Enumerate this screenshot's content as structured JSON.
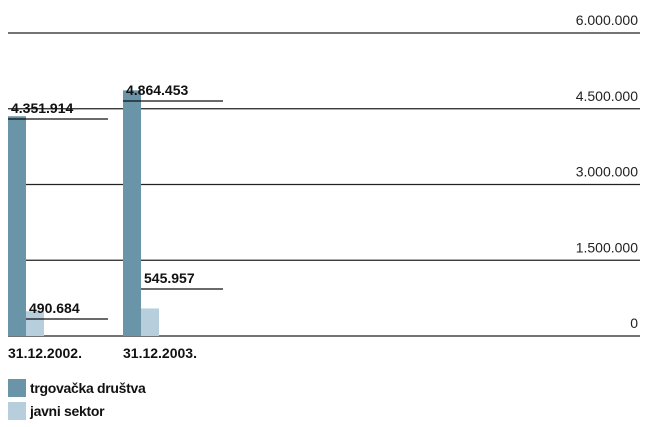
{
  "chart_data": {
    "type": "bar",
    "categories": [
      "31.12.2002.",
      "31.12.2003."
    ],
    "series": [
      {
        "name": "trgovačka društva",
        "values": [
          4351914,
          4864453
        ],
        "labels": [
          "4.351.914",
          "4.864.453"
        ],
        "color": "#6a94a8"
      },
      {
        "name": "javni sektor",
        "values": [
          490684,
          545957
        ],
        "labels": [
          "490.684",
          "545.957"
        ],
        "color": "#b7cfdd"
      }
    ],
    "y_ticks": [
      0,
      1500000,
      3000000,
      4500000,
      6000000
    ],
    "y_tick_labels": [
      "0",
      "1.500.000",
      "3.000.000",
      "4.500.000",
      "6.000.000"
    ],
    "ylim": [
      0,
      6000000
    ],
    "y_axis_side": "right",
    "grid": true,
    "legend_position": "bottom-left"
  }
}
